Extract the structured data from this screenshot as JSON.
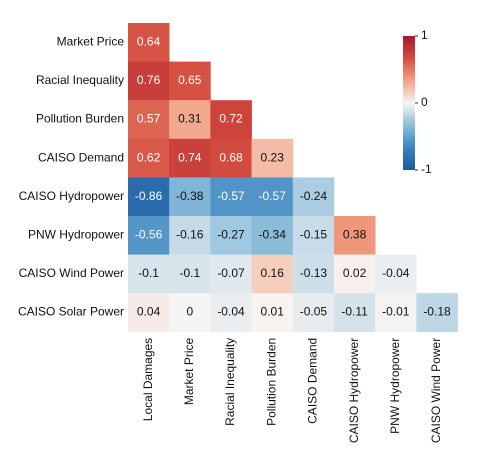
{
  "chart_data": {
    "type": "heatmap",
    "rows": [
      "Market Price",
      "Racial Inequality",
      "Pollution Burden",
      "CAISO Demand",
      "CAISO Hydropower",
      "PNW Hydropower",
      "CAISO Wind Power",
      "CAISO Solar Power"
    ],
    "columns": [
      "Local Damages",
      "Market Price",
      "Racial Inequality",
      "Pollution Burden",
      "CAISO Demand",
      "CAISO Hydropower",
      "PNW Hydropower",
      "CAISO Wind Power"
    ],
    "values": [
      [
        0.64,
        null,
        null,
        null,
        null,
        null,
        null,
        null
      ],
      [
        0.76,
        0.65,
        null,
        null,
        null,
        null,
        null,
        null
      ],
      [
        0.57,
        0.31,
        0.72,
        null,
        null,
        null,
        null,
        null
      ],
      [
        0.62,
        0.74,
        0.68,
        0.23,
        null,
        null,
        null,
        null
      ],
      [
        -0.86,
        -0.38,
        -0.57,
        -0.57,
        -0.24,
        null,
        null,
        null
      ],
      [
        -0.56,
        -0.16,
        -0.27,
        -0.34,
        -0.15,
        0.38,
        null,
        null
      ],
      [
        -0.1,
        -0.1,
        -0.07,
        0.16,
        -0.13,
        0.02,
        -0.04,
        null
      ],
      [
        0.04,
        0,
        -0.04,
        0.01,
        -0.05,
        -0.11,
        -0.01,
        -0.18
      ]
    ],
    "zlim": [
      -1,
      1
    ],
    "zticks": [
      1,
      0,
      -1
    ],
    "colorscale": [
      "#1c5a9e",
      "#3a83bf",
      "#8cbddb",
      "#f7f5f3",
      "#f2a385",
      "#d44d3f",
      "#a8172c"
    ]
  }
}
